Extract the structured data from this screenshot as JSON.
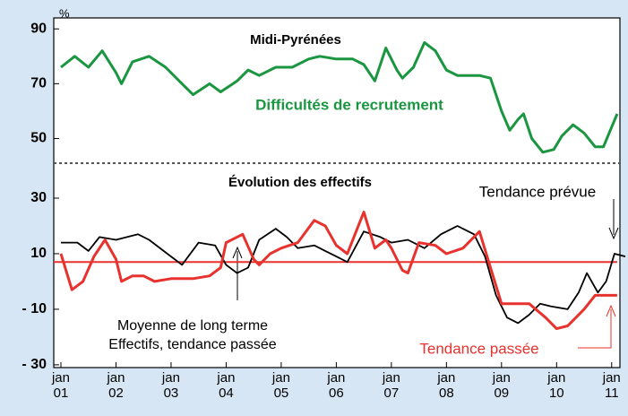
{
  "chart_data": [
    {
      "type": "line",
      "title": "Midi-Pyrénées",
      "y_unit": "%",
      "xlim": [
        2000.87,
        2011.15
      ],
      "ylim": [
        41,
        94
      ],
      "yticks": [
        90,
        70,
        50
      ],
      "annotations": [
        "Difficultés de recrutement"
      ],
      "series": [
        {
          "color": "#1a9641",
          "x": [
            2001.0,
            2001.25,
            2001.5,
            2001.75,
            2002.0,
            2002.1,
            2002.3,
            2002.6,
            2002.9,
            2003.2,
            2003.4,
            2003.7,
            2003.9,
            2004.2,
            2004.4,
            2004.6,
            2004.9,
            2005.2,
            2005.5,
            2005.7,
            2006.0,
            2006.3,
            2006.5,
            2006.7,
            2006.9,
            2007.1,
            2007.2,
            2007.4,
            2007.6,
            2007.8,
            2008.0,
            2008.2,
            2008.4,
            2008.6,
            2008.8,
            2009.0,
            2009.15,
            2009.3,
            2009.4,
            2009.55,
            2009.75,
            2009.95,
            2010.1,
            2010.3,
            2010.5,
            2010.7,
            2010.85,
            2011.1
          ],
          "values": [
            76,
            80,
            76,
            82,
            74,
            70,
            78,
            80,
            76,
            70,
            66,
            70,
            67,
            71,
            75,
            73,
            76,
            76,
            79,
            80,
            79,
            79,
            77,
            71,
            83,
            75,
            72,
            76,
            85,
            82,
            75,
            73,
            73,
            73,
            72,
            60,
            53,
            57,
            59,
            50,
            45,
            46,
            51,
            55,
            52,
            47,
            47,
            59
          ]
        }
      ]
    },
    {
      "type": "line",
      "title": "Évolution des effectifs",
      "xlim": [
        2000.87,
        2011.15
      ],
      "ylim": [
        -31,
        40
      ],
      "yticks": [
        30,
        10,
        {
          "value": -10,
          "label": "- 10"
        },
        {
          "value": -30,
          "label": "- 30"
        }
      ],
      "xticks": [
        {
          "value": 2001,
          "label": "jan\n01"
        },
        {
          "value": 2002,
          "label": "jan\n02"
        },
        {
          "value": 2003,
          "label": "jan\n03"
        },
        {
          "value": 2004,
          "label": "jan\n04"
        },
        {
          "value": 2005,
          "label": "jan\n05"
        },
        {
          "value": 2006,
          "label": "jan\n06"
        },
        {
          "value": 2007,
          "label": "jan\n07"
        },
        {
          "value": 2008,
          "label": "jan\n08"
        },
        {
          "value": 2009,
          "label": "jan\n09"
        },
        {
          "value": 2010,
          "label": "jan\n10"
        },
        {
          "value": 2011,
          "label": "jan\n11"
        }
      ],
      "hlines": [
        {
          "value": 7,
          "color": "#e8322e"
        }
      ],
      "annotations": [
        "Tendance prévue",
        "Moyenne de long terme",
        "Effectifs, tendance passée",
        "Tendance passée"
      ],
      "series": [
        {
          "color": "#000000",
          "x": [
            2001.0,
            2001.3,
            2001.5,
            2001.7,
            2002.0,
            2002.4,
            2002.6,
            2003.0,
            2003.2,
            2003.5,
            2003.8,
            2004.0,
            2004.2,
            2004.4,
            2004.6,
            2004.9,
            2005.1,
            2005.3,
            2005.6,
            2005.8,
            2006.0,
            2006.2,
            2006.5,
            2006.8,
            2007.0,
            2007.3,
            2007.6,
            2007.9,
            2008.2,
            2008.5,
            2008.7,
            2008.9,
            2009.1,
            2009.3,
            2009.5,
            2009.7,
            2009.9,
            2010.2,
            2010.4,
            2010.55,
            2010.75,
            2010.9,
            2011.05,
            2011.25
          ],
          "values": [
            14,
            14,
            11,
            16,
            15,
            17,
            15,
            9,
            6,
            14,
            13,
            6,
            3,
            5,
            15,
            19,
            16,
            12,
            13,
            11,
            9,
            7,
            18,
            16,
            14,
            15,
            12,
            17,
            20,
            17,
            9,
            -5,
            -13,
            -15,
            -12,
            -8,
            -9,
            -10,
            -4,
            3,
            -4,
            0,
            10,
            9
          ]
        },
        {
          "color": "#e8322e",
          "x": [
            2001.0,
            2001.2,
            2001.4,
            2001.6,
            2001.8,
            2002.0,
            2002.1,
            2002.3,
            2002.5,
            2002.7,
            2003.0,
            2003.4,
            2003.7,
            2003.9,
            2004.0,
            2004.3,
            2004.5,
            2004.6,
            2004.8,
            2005.0,
            2005.3,
            2005.6,
            2005.8,
            2006.0,
            2006.2,
            2006.5,
            2006.7,
            2006.9,
            2007.0,
            2007.2,
            2007.3,
            2007.5,
            2007.8,
            2008.0,
            2008.3,
            2008.6,
            2008.8,
            2009.0,
            2009.3,
            2009.5,
            2009.8,
            2010.0,
            2010.2,
            2010.5,
            2010.7,
            2011.1
          ],
          "values": [
            10,
            -3,
            0,
            9,
            15,
            8,
            0,
            2,
            2,
            0,
            1,
            1,
            2,
            5,
            14,
            17,
            8,
            6,
            10,
            12,
            14,
            22,
            20,
            13,
            10,
            25,
            12,
            15,
            12,
            4,
            3,
            14,
            13,
            10,
            12,
            18,
            5,
            -8,
            -8,
            -8,
            -13,
            -17,
            -16,
            -10,
            -5,
            -5
          ]
        }
      ]
    }
  ]
}
